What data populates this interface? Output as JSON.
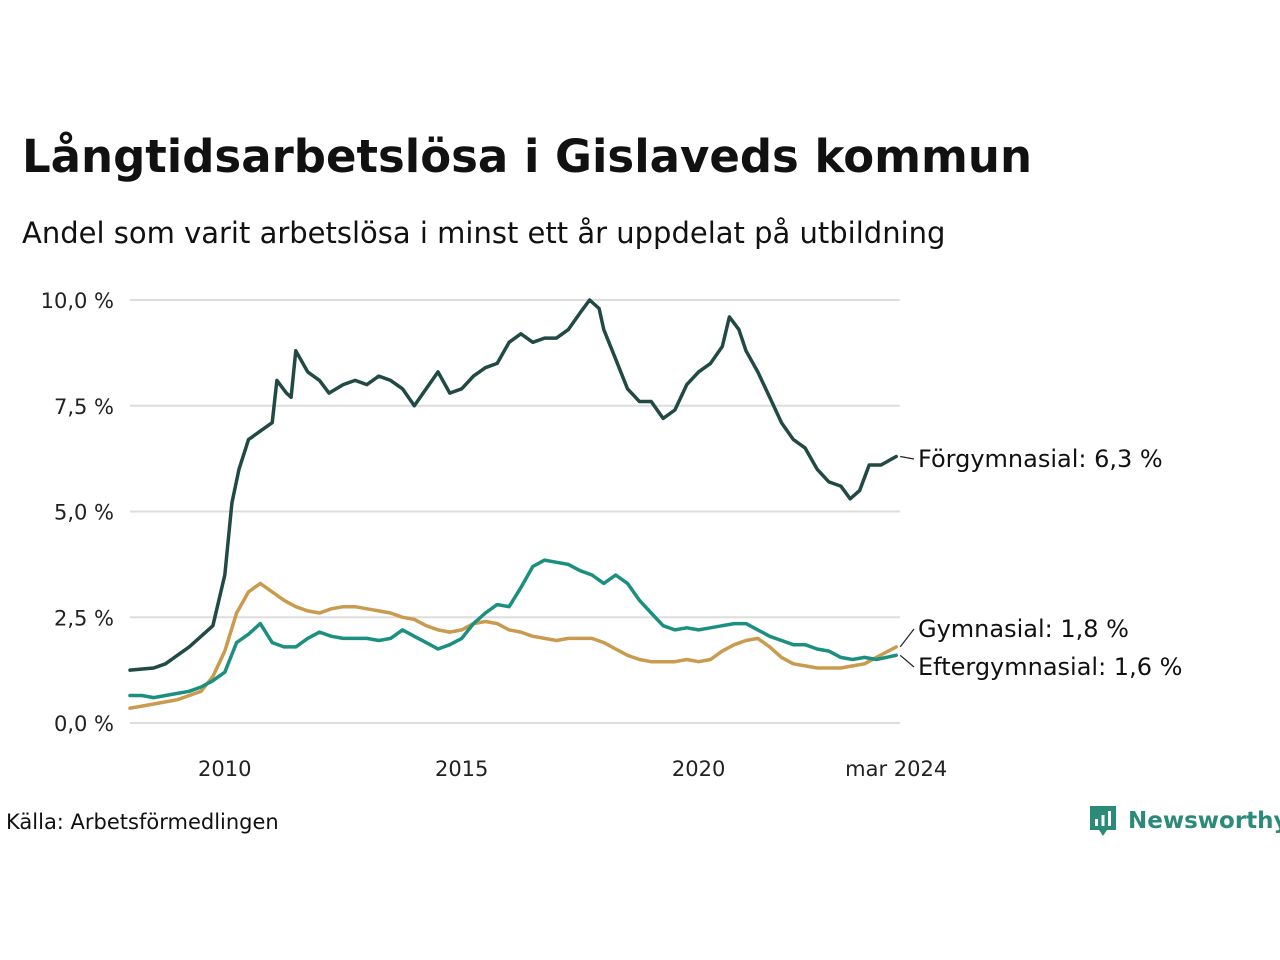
{
  "title": "Långtidsarbetslösa i Gislaveds kommun",
  "subtitle": "Andel som varit arbetslösa i minst ett år uppdelat på utbildning",
  "source": "Källa: Arbetsförmedlingen",
  "brand": "Newsworthy",
  "colors": {
    "forgymnasial": "#214a44",
    "gymnasial": "#c99b4e",
    "eftergymnasial": "#1b9080",
    "grid": "#dddddd",
    "brand": "#2b8a78"
  },
  "chart_data": {
    "type": "line",
    "title": "Långtidsarbetslösa i Gislaveds kommun",
    "ylabel": "",
    "xlabel": "",
    "ylim": [
      0,
      10
    ],
    "xlim": [
      2008.0,
      2024.25
    ],
    "yticks": [
      0,
      2.5,
      5,
      7.5,
      10
    ],
    "ytick_labels": [
      "0,0 %",
      "2,5 %",
      "5,0 %",
      "7,5 %",
      "10,0 %"
    ],
    "xticks": [
      2010,
      2015,
      2020,
      2024.17
    ],
    "xtick_labels": [
      "2010",
      "2015",
      "2020",
      "mar 2024"
    ],
    "series": [
      {
        "key": "forgymnasial",
        "name": "Förgymnasial",
        "end_label": "Förgymnasial: 6,3 %",
        "points": [
          [
            2008.0,
            1.25
          ],
          [
            2008.5,
            1.3
          ],
          [
            2008.75,
            1.4
          ],
          [
            2009.0,
            1.6
          ],
          [
            2009.25,
            1.8
          ],
          [
            2009.5,
            2.05
          ],
          [
            2009.75,
            2.3
          ],
          [
            2010.0,
            3.5
          ],
          [
            2010.15,
            5.2
          ],
          [
            2010.3,
            6.0
          ],
          [
            2010.5,
            6.7
          ],
          [
            2010.75,
            6.9
          ],
          [
            2011.0,
            7.1
          ],
          [
            2011.1,
            8.1
          ],
          [
            2011.3,
            7.8
          ],
          [
            2011.4,
            7.7
          ],
          [
            2011.5,
            8.8
          ],
          [
            2011.75,
            8.3
          ],
          [
            2012.0,
            8.1
          ],
          [
            2012.2,
            7.8
          ],
          [
            2012.5,
            8.0
          ],
          [
            2012.75,
            8.1
          ],
          [
            2013.0,
            8.0
          ],
          [
            2013.25,
            8.2
          ],
          [
            2013.5,
            8.1
          ],
          [
            2013.75,
            7.9
          ],
          [
            2014.0,
            7.5
          ],
          [
            2014.25,
            7.9
          ],
          [
            2014.5,
            8.3
          ],
          [
            2014.75,
            7.8
          ],
          [
            2015.0,
            7.9
          ],
          [
            2015.25,
            8.2
          ],
          [
            2015.5,
            8.4
          ],
          [
            2015.75,
            8.5
          ],
          [
            2016.0,
            9.0
          ],
          [
            2016.25,
            9.2
          ],
          [
            2016.5,
            9.0
          ],
          [
            2016.75,
            9.1
          ],
          [
            2017.0,
            9.1
          ],
          [
            2017.25,
            9.3
          ],
          [
            2017.5,
            9.7
          ],
          [
            2017.7,
            10.0
          ],
          [
            2017.9,
            9.8
          ],
          [
            2018.0,
            9.3
          ],
          [
            2018.25,
            8.6
          ],
          [
            2018.5,
            7.9
          ],
          [
            2018.75,
            7.6
          ],
          [
            2019.0,
            7.6
          ],
          [
            2019.25,
            7.2
          ],
          [
            2019.5,
            7.4
          ],
          [
            2019.75,
            8.0
          ],
          [
            2020.0,
            8.3
          ],
          [
            2020.25,
            8.5
          ],
          [
            2020.5,
            8.9
          ],
          [
            2020.65,
            9.6
          ],
          [
            2020.85,
            9.3
          ],
          [
            2021.0,
            8.8
          ],
          [
            2021.25,
            8.3
          ],
          [
            2021.5,
            7.7
          ],
          [
            2021.75,
            7.1
          ],
          [
            2022.0,
            6.7
          ],
          [
            2022.25,
            6.5
          ],
          [
            2022.5,
            6.0
          ],
          [
            2022.75,
            5.7
          ],
          [
            2023.0,
            5.6
          ],
          [
            2023.2,
            5.3
          ],
          [
            2023.4,
            5.5
          ],
          [
            2023.6,
            6.1
          ],
          [
            2023.85,
            6.1
          ],
          [
            2024.17,
            6.3
          ]
        ]
      },
      {
        "key": "gymnasial",
        "name": "Gymnasial",
        "end_label": "Gymnasial: 1,8 %",
        "points": [
          [
            2008.0,
            0.35
          ],
          [
            2008.25,
            0.4
          ],
          [
            2008.5,
            0.45
          ],
          [
            2008.75,
            0.5
          ],
          [
            2009.0,
            0.55
          ],
          [
            2009.25,
            0.65
          ],
          [
            2009.5,
            0.75
          ],
          [
            2009.75,
            1.1
          ],
          [
            2010.0,
            1.7
          ],
          [
            2010.25,
            2.6
          ],
          [
            2010.5,
            3.1
          ],
          [
            2010.75,
            3.3
          ],
          [
            2011.0,
            3.1
          ],
          [
            2011.25,
            2.9
          ],
          [
            2011.5,
            2.75
          ],
          [
            2011.75,
            2.65
          ],
          [
            2012.0,
            2.6
          ],
          [
            2012.25,
            2.7
          ],
          [
            2012.5,
            2.75
          ],
          [
            2012.75,
            2.75
          ],
          [
            2013.0,
            2.7
          ],
          [
            2013.25,
            2.65
          ],
          [
            2013.5,
            2.6
          ],
          [
            2013.75,
            2.5
          ],
          [
            2014.0,
            2.45
          ],
          [
            2014.25,
            2.3
          ],
          [
            2014.5,
            2.2
          ],
          [
            2014.75,
            2.15
          ],
          [
            2015.0,
            2.2
          ],
          [
            2015.25,
            2.35
          ],
          [
            2015.5,
            2.4
          ],
          [
            2015.75,
            2.35
          ],
          [
            2016.0,
            2.2
          ],
          [
            2016.25,
            2.15
          ],
          [
            2016.5,
            2.05
          ],
          [
            2016.75,
            2.0
          ],
          [
            2017.0,
            1.95
          ],
          [
            2017.25,
            2.0
          ],
          [
            2017.5,
            2.0
          ],
          [
            2017.75,
            2.0
          ],
          [
            2018.0,
            1.9
          ],
          [
            2018.25,
            1.75
          ],
          [
            2018.5,
            1.6
          ],
          [
            2018.75,
            1.5
          ],
          [
            2019.0,
            1.45
          ],
          [
            2019.25,
            1.45
          ],
          [
            2019.5,
            1.45
          ],
          [
            2019.75,
            1.5
          ],
          [
            2020.0,
            1.45
          ],
          [
            2020.25,
            1.5
          ],
          [
            2020.5,
            1.7
          ],
          [
            2020.75,
            1.85
          ],
          [
            2021.0,
            1.95
          ],
          [
            2021.25,
            2.0
          ],
          [
            2021.5,
            1.8
          ],
          [
            2021.75,
            1.55
          ],
          [
            2022.0,
            1.4
          ],
          [
            2022.25,
            1.35
          ],
          [
            2022.5,
            1.3
          ],
          [
            2022.75,
            1.3
          ],
          [
            2023.0,
            1.3
          ],
          [
            2023.25,
            1.35
          ],
          [
            2023.5,
            1.4
          ],
          [
            2023.75,
            1.55
          ],
          [
            2024.17,
            1.8
          ]
        ]
      },
      {
        "key": "eftergymnasial",
        "name": "Eftergymnasial",
        "end_label": "Eftergymnasial: 1,6 %",
        "points": [
          [
            2008.0,
            0.65
          ],
          [
            2008.25,
            0.65
          ],
          [
            2008.5,
            0.6
          ],
          [
            2008.75,
            0.65
          ],
          [
            2009.0,
            0.7
          ],
          [
            2009.25,
            0.75
          ],
          [
            2009.5,
            0.85
          ],
          [
            2009.75,
            1.0
          ],
          [
            2010.0,
            1.2
          ],
          [
            2010.25,
            1.9
          ],
          [
            2010.5,
            2.1
          ],
          [
            2010.75,
            2.35
          ],
          [
            2011.0,
            1.9
          ],
          [
            2011.25,
            1.8
          ],
          [
            2011.5,
            1.8
          ],
          [
            2011.75,
            2.0
          ],
          [
            2012.0,
            2.15
          ],
          [
            2012.25,
            2.05
          ],
          [
            2012.5,
            2.0
          ],
          [
            2012.75,
            2.0
          ],
          [
            2013.0,
            2.0
          ],
          [
            2013.25,
            1.95
          ],
          [
            2013.5,
            2.0
          ],
          [
            2013.75,
            2.2
          ],
          [
            2014.0,
            2.05
          ],
          [
            2014.25,
            1.9
          ],
          [
            2014.5,
            1.75
          ],
          [
            2014.75,
            1.85
          ],
          [
            2015.0,
            2.0
          ],
          [
            2015.25,
            2.35
          ],
          [
            2015.5,
            2.6
          ],
          [
            2015.75,
            2.8
          ],
          [
            2016.0,
            2.75
          ],
          [
            2016.25,
            3.2
          ],
          [
            2016.5,
            3.7
          ],
          [
            2016.75,
            3.85
          ],
          [
            2017.0,
            3.8
          ],
          [
            2017.25,
            3.75
          ],
          [
            2017.5,
            3.6
          ],
          [
            2017.75,
            3.5
          ],
          [
            2018.0,
            3.3
          ],
          [
            2018.25,
            3.5
          ],
          [
            2018.5,
            3.3
          ],
          [
            2018.75,
            2.9
          ],
          [
            2019.0,
            2.6
          ],
          [
            2019.25,
            2.3
          ],
          [
            2019.5,
            2.2
          ],
          [
            2019.75,
            2.25
          ],
          [
            2020.0,
            2.2
          ],
          [
            2020.25,
            2.25
          ],
          [
            2020.5,
            2.3
          ],
          [
            2020.75,
            2.35
          ],
          [
            2021.0,
            2.35
          ],
          [
            2021.25,
            2.2
          ],
          [
            2021.5,
            2.05
          ],
          [
            2021.75,
            1.95
          ],
          [
            2022.0,
            1.85
          ],
          [
            2022.25,
            1.85
          ],
          [
            2022.5,
            1.75
          ],
          [
            2022.75,
            1.7
          ],
          [
            2023.0,
            1.55
          ],
          [
            2023.25,
            1.5
          ],
          [
            2023.5,
            1.55
          ],
          [
            2023.75,
            1.5
          ],
          [
            2024.17,
            1.6
          ]
        ]
      }
    ]
  }
}
